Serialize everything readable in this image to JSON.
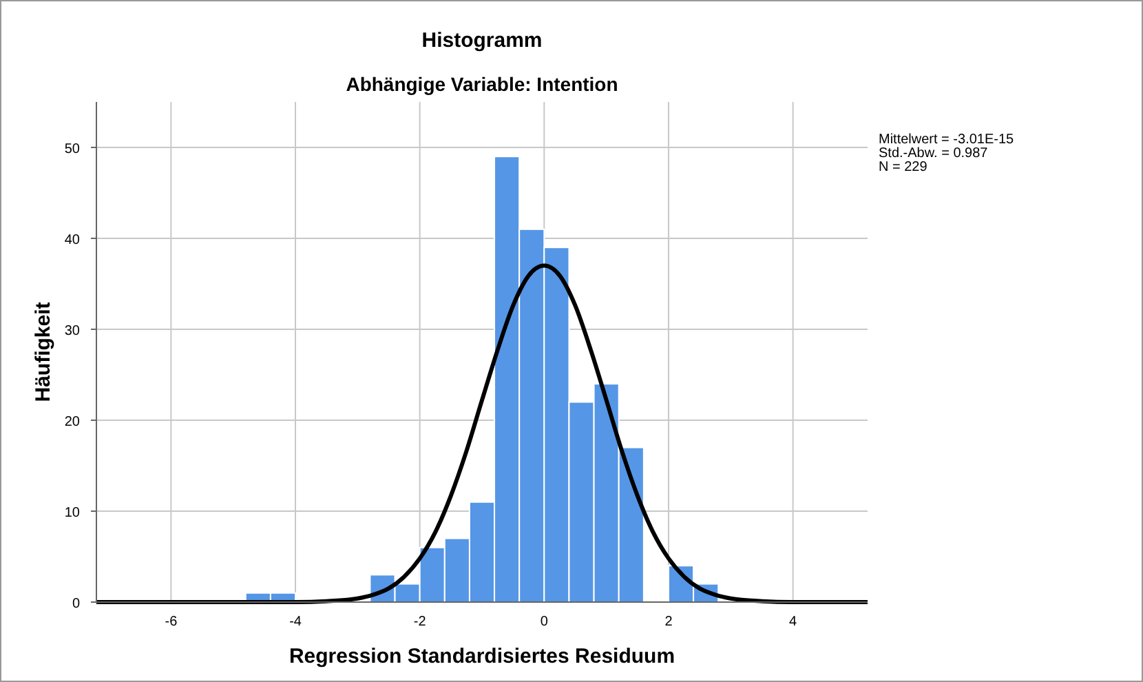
{
  "chart_data": {
    "type": "histogram",
    "title": "Histogramm",
    "subtitle": "Abhängige Variable: Intention",
    "xlabel": "Regression Standardisiertes Residuum",
    "ylabel": "Häufigkeit",
    "bins": [
      -4.8,
      -4.4,
      -4.0,
      -3.6,
      -3.2,
      -2.8,
      -2.4,
      -2.0,
      -1.6,
      -1.2,
      -0.8,
      -0.4,
      0,
      0.4,
      0.8,
      1.2,
      1.6,
      2.0,
      2.4,
      2.8
    ],
    "values": [
      1,
      1,
      0,
      0,
      0,
      3,
      2,
      6,
      7,
      11,
      49,
      41,
      39,
      22,
      24,
      17,
      0,
      4,
      2
    ],
    "color": "#5596e6",
    "series": [
      {
        "type": "line",
        "color": "#000000",
        "x": [
          -7.2,
          -4,
          -3.5,
          -3,
          -2.75,
          -2.5,
          -2.25,
          -2,
          -1.75,
          -1.5,
          -1.25,
          -1,
          -0.75,
          -0.5,
          -0.25,
          0,
          0.25,
          0.5,
          0.75,
          1,
          1.25,
          1.5,
          1.75,
          2,
          2.25,
          2.5,
          2.75,
          3,
          3.5,
          4,
          5.2
        ],
        "values": [
          0,
          0,
          0.1,
          0.4,
          0.8,
          1.5,
          2.8,
          4.8,
          7.7,
          11.7,
          16.6,
          22.2,
          27.7,
          32.6,
          35.9,
          37.0,
          35.9,
          32.6,
          27.7,
          22.2,
          16.6,
          11.7,
          7.7,
          4.8,
          2.8,
          1.5,
          0.8,
          0.4,
          0.1,
          0,
          0
        ]
      }
    ],
    "xlim": [
      -7.2,
      5.2
    ],
    "ylim": [
      0,
      55
    ],
    "xticks": [
      -6,
      -4,
      -2,
      0,
      2,
      4
    ],
    "yticks": [
      0,
      10,
      20,
      30,
      40,
      50
    ],
    "grid": true,
    "marker": "none",
    "line_style": "solid",
    "annotations": [
      "Mittelwert = -3.01E-15",
      "Std.-Abw. = 0.987",
      "N = 229"
    ]
  }
}
